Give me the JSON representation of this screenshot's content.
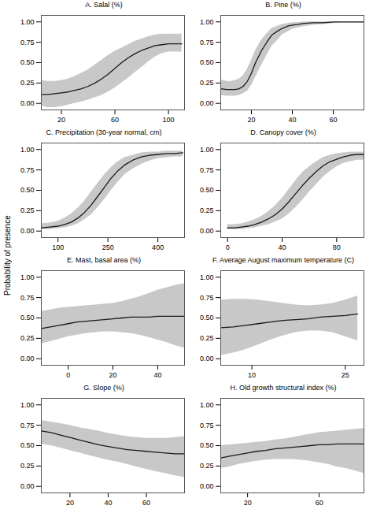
{
  "chart_data": [
    {
      "type": "line",
      "title": "A. Salal (%)",
      "ylabel": "Probability of presence",
      "x": [
        5,
        10,
        15,
        20,
        25,
        30,
        35,
        40,
        45,
        50,
        55,
        60,
        65,
        70,
        75,
        80,
        85,
        90,
        95,
        100,
        105,
        110
      ],
      "xlim": [
        5,
        112
      ],
      "xticks": [
        20,
        60,
        100
      ],
      "ylim": [
        -0.08,
        1.08
      ],
      "yticks": [
        {
          "value": 0.0,
          "label": "0.00"
        },
        {
          "value": 0.25,
          "label": "0.25"
        },
        {
          "value": 0.5,
          "label": "0.50"
        },
        {
          "value": 0.75,
          "label": "0.75"
        },
        {
          "value": 1.0,
          "label": "1.00"
        }
      ],
      "series": [
        {
          "type": "area",
          "color": "#c8c8c8",
          "lower": [
            -0.03,
            -0.05,
            -0.05,
            -0.04,
            -0.02,
            0.0,
            0.02,
            0.04,
            0.07,
            0.1,
            0.14,
            0.19,
            0.25,
            0.31,
            0.38,
            0.44,
            0.51,
            0.57,
            0.61,
            0.63,
            0.63,
            0.63
          ],
          "upper": [
            0.28,
            0.27,
            0.27,
            0.28,
            0.3,
            0.33,
            0.37,
            0.41,
            0.47,
            0.53,
            0.59,
            0.64,
            0.68,
            0.72,
            0.76,
            0.79,
            0.82,
            0.84,
            0.85,
            0.85,
            0.85,
            0.85
          ]
        },
        {
          "type": "line",
          "color": "#1a1a1a",
          "values": [
            0.11,
            0.11,
            0.12,
            0.13,
            0.14,
            0.16,
            0.18,
            0.21,
            0.25,
            0.3,
            0.36,
            0.43,
            0.5,
            0.56,
            0.61,
            0.65,
            0.68,
            0.71,
            0.72,
            0.73,
            0.73,
            0.73
          ]
        }
      ]
    },
    {
      "type": "line",
      "title": "B. Pine (%)",
      "ylabel": "Probability of presence",
      "x": [
        5,
        8,
        10,
        12,
        14,
        16,
        18,
        20,
        22,
        25,
        28,
        30,
        33,
        35,
        38,
        40,
        43,
        45,
        50,
        55,
        60,
        65,
        70,
        75
      ],
      "xlim": [
        5,
        75
      ],
      "xticks": [
        20,
        40,
        60
      ],
      "ylim": [
        -0.08,
        1.08
      ],
      "yticks": [
        {
          "value": 0.0,
          "label": "0.00"
        },
        {
          "value": 0.25,
          "label": "0.25"
        },
        {
          "value": 0.5,
          "label": "0.50"
        },
        {
          "value": 0.75,
          "label": "0.75"
        },
        {
          "value": 1.0,
          "label": "1.00"
        }
      ],
      "series": [
        {
          "type": "area",
          "color": "#c8c8c8",
          "lower": [
            0.1,
            0.09,
            0.09,
            0.09,
            0.1,
            0.12,
            0.15,
            0.22,
            0.32,
            0.47,
            0.61,
            0.7,
            0.78,
            0.84,
            0.88,
            0.91,
            0.93,
            0.94,
            0.96,
            0.97,
            0.98,
            0.99,
            0.99,
            0.99
          ],
          "upper": [
            0.29,
            0.27,
            0.27,
            0.28,
            0.3,
            0.34,
            0.42,
            0.53,
            0.65,
            0.78,
            0.87,
            0.92,
            0.95,
            0.97,
            0.98,
            0.99,
            0.99,
            1.0,
            1.0,
            1.0,
            1.0,
            1.0,
            1.0,
            1.0
          ]
        },
        {
          "type": "line",
          "color": "#1a1a1a",
          "values": [
            0.18,
            0.17,
            0.17,
            0.17,
            0.18,
            0.21,
            0.27,
            0.37,
            0.5,
            0.65,
            0.77,
            0.84,
            0.89,
            0.92,
            0.95,
            0.96,
            0.97,
            0.98,
            0.99,
            0.99,
            1.0,
            1.0,
            1.0,
            1.0
          ]
        }
      ]
    },
    {
      "type": "line",
      "title": "C. Precipitation (30-year normal, cm)",
      "ylabel": "Probability of presence",
      "x": [
        50,
        75,
        100,
        120,
        140,
        160,
        180,
        200,
        220,
        240,
        260,
        280,
        300,
        325,
        350,
        375,
        400,
        425,
        450,
        475
      ],
      "xlim": [
        50,
        480
      ],
      "xticks": [
        100,
        250,
        400
      ],
      "ylim": [
        -0.08,
        1.08
      ],
      "yticks": [
        {
          "value": 0.0,
          "label": "0.00"
        },
        {
          "value": 0.25,
          "label": "0.25"
        },
        {
          "value": 0.5,
          "label": "0.50"
        },
        {
          "value": 0.75,
          "label": "0.75"
        },
        {
          "value": 1.0,
          "label": "1.00"
        }
      ],
      "series": [
        {
          "type": "area",
          "color": "#c8c8c8",
          "lower": [
            0.02,
            0.02,
            0.03,
            0.04,
            0.06,
            0.09,
            0.14,
            0.2,
            0.29,
            0.39,
            0.5,
            0.6,
            0.69,
            0.76,
            0.82,
            0.86,
            0.89,
            0.9,
            0.91,
            0.91
          ],
          "upper": [
            0.09,
            0.1,
            0.12,
            0.16,
            0.21,
            0.28,
            0.37,
            0.48,
            0.59,
            0.69,
            0.78,
            0.85,
            0.9,
            0.93,
            0.96,
            0.97,
            0.97,
            0.98,
            0.98,
            0.98
          ]
        },
        {
          "type": "line",
          "color": "#1a1a1a",
          "values": [
            0.04,
            0.05,
            0.06,
            0.08,
            0.11,
            0.16,
            0.23,
            0.32,
            0.43,
            0.54,
            0.65,
            0.74,
            0.81,
            0.87,
            0.91,
            0.93,
            0.94,
            0.95,
            0.95,
            0.96
          ]
        }
      ]
    },
    {
      "type": "line",
      "title": "D. Canopy cover (%)",
      "ylabel": "Probability of presence",
      "x": [
        0,
        5,
        10,
        15,
        20,
        25,
        30,
        35,
        40,
        45,
        50,
        55,
        60,
        65,
        70,
        75,
        80,
        85,
        90,
        95,
        100
      ],
      "xlim": [
        -5,
        100
      ],
      "xticks": [
        0,
        40,
        80
      ],
      "ylim": [
        -0.08,
        1.08
      ],
      "yticks": [
        {
          "value": 0.0,
          "label": "0.00"
        },
        {
          "value": 0.25,
          "label": "0.25"
        },
        {
          "value": 0.5,
          "label": "0.50"
        },
        {
          "value": 0.75,
          "label": "0.75"
        },
        {
          "value": 1.0,
          "label": "1.00"
        }
      ],
      "series": [
        {
          "type": "area",
          "color": "#c8c8c8",
          "lower": [
            0.02,
            0.02,
            0.02,
            0.03,
            0.04,
            0.06,
            0.08,
            0.11,
            0.15,
            0.21,
            0.29,
            0.38,
            0.48,
            0.57,
            0.66,
            0.73,
            0.79,
            0.83,
            0.85,
            0.87,
            0.87
          ],
          "upper": [
            0.08,
            0.08,
            0.09,
            0.11,
            0.14,
            0.18,
            0.24,
            0.31,
            0.4,
            0.51,
            0.62,
            0.72,
            0.79,
            0.85,
            0.9,
            0.93,
            0.95,
            0.96,
            0.97,
            0.97,
            0.97
          ]
        },
        {
          "type": "line",
          "color": "#1a1a1a",
          "values": [
            0.04,
            0.04,
            0.05,
            0.06,
            0.08,
            0.11,
            0.15,
            0.2,
            0.27,
            0.36,
            0.46,
            0.56,
            0.65,
            0.73,
            0.8,
            0.85,
            0.88,
            0.91,
            0.93,
            0.94,
            0.94
          ]
        }
      ]
    },
    {
      "type": "line",
      "title": "E. Mast, basal area (%)",
      "ylabel": "Probability of presence",
      "x": [
        -12,
        -8,
        -4,
        0,
        4,
        8,
        12,
        16,
        20,
        24,
        28,
        32,
        36,
        40,
        44,
        48,
        52
      ],
      "xlim": [
        -12,
        52
      ],
      "xticks": [
        0,
        20,
        40
      ],
      "ylim": [
        -0.08,
        1.08
      ],
      "yticks": [
        {
          "value": 0.0,
          "label": "0.00"
        },
        {
          "value": 0.25,
          "label": "0.25"
        },
        {
          "value": 0.5,
          "label": "0.50"
        },
        {
          "value": 0.75,
          "label": "0.75"
        },
        {
          "value": 1.0,
          "label": "1.00"
        }
      ],
      "series": [
        {
          "type": "area",
          "color": "#c8c8c8",
          "lower": [
            0.18,
            0.21,
            0.24,
            0.27,
            0.29,
            0.31,
            0.32,
            0.33,
            0.33,
            0.32,
            0.31,
            0.29,
            0.26,
            0.23,
            0.2,
            0.16,
            0.13
          ],
          "upper": [
            0.58,
            0.6,
            0.62,
            0.63,
            0.64,
            0.65,
            0.66,
            0.67,
            0.68,
            0.7,
            0.73,
            0.76,
            0.8,
            0.84,
            0.87,
            0.9,
            0.92
          ]
        },
        {
          "type": "line",
          "color": "#1a1a1a",
          "values": [
            0.37,
            0.39,
            0.41,
            0.43,
            0.45,
            0.46,
            0.47,
            0.48,
            0.49,
            0.5,
            0.51,
            0.51,
            0.51,
            0.52,
            0.52,
            0.52,
            0.52
          ]
        }
      ]
    },
    {
      "type": "line",
      "title": "F. Average August maximum temperature (C)",
      "ylabel": "Probability of presence",
      "x": [
        5,
        7,
        9,
        11,
        13,
        15,
        17,
        19,
        21,
        23,
        25,
        27
      ],
      "xlim": [
        5,
        28
      ],
      "xticks": [
        10,
        25
      ],
      "ylim": [
        -0.08,
        1.08
      ],
      "yticks": [
        {
          "value": 0.0,
          "label": "0.00"
        },
        {
          "value": 0.25,
          "label": "0.25"
        },
        {
          "value": 0.5,
          "label": "0.50"
        },
        {
          "value": 0.75,
          "label": "0.75"
        },
        {
          "value": 1.0,
          "label": "1.00"
        }
      ],
      "series": [
        {
          "type": "area",
          "color": "#c8c8c8",
          "lower": [
            0.04,
            0.07,
            0.11,
            0.17,
            0.23,
            0.28,
            0.32,
            0.34,
            0.34,
            0.32,
            0.27,
            0.22
          ],
          "upper": [
            0.72,
            0.73,
            0.73,
            0.72,
            0.7,
            0.68,
            0.66,
            0.65,
            0.66,
            0.68,
            0.72,
            0.77
          ]
        },
        {
          "type": "line",
          "color": "#1a1a1a",
          "values": [
            0.38,
            0.39,
            0.41,
            0.43,
            0.45,
            0.47,
            0.48,
            0.49,
            0.51,
            0.52,
            0.53,
            0.55
          ]
        }
      ]
    },
    {
      "type": "line",
      "title": "G. Slope (%)",
      "ylabel": "Probability of presence",
      "x": [
        5,
        10,
        15,
        20,
        25,
        30,
        35,
        40,
        45,
        50,
        55,
        60,
        65,
        70,
        75,
        80
      ],
      "xlim": [
        5,
        80
      ],
      "xticks": [
        20,
        40,
        60
      ],
      "ylim": [
        -0.08,
        1.08
      ],
      "yticks": [
        {
          "value": 0.0,
          "label": "0.00"
        },
        {
          "value": 0.25,
          "label": "0.25"
        },
        {
          "value": 0.5,
          "label": "0.50"
        },
        {
          "value": 0.75,
          "label": "0.75"
        },
        {
          "value": 1.0,
          "label": "1.00"
        }
      ],
      "series": [
        {
          "type": "area",
          "color": "#c8c8c8",
          "lower": [
            0.52,
            0.5,
            0.47,
            0.44,
            0.41,
            0.38,
            0.35,
            0.32,
            0.3,
            0.27,
            0.24,
            0.21,
            0.18,
            0.16,
            0.13,
            0.11
          ],
          "upper": [
            0.81,
            0.79,
            0.77,
            0.75,
            0.72,
            0.7,
            0.68,
            0.65,
            0.63,
            0.61,
            0.6,
            0.59,
            0.59,
            0.59,
            0.6,
            0.61
          ]
        },
        {
          "type": "line",
          "color": "#1a1a1a",
          "values": [
            0.68,
            0.66,
            0.63,
            0.6,
            0.57,
            0.54,
            0.51,
            0.49,
            0.47,
            0.45,
            0.44,
            0.43,
            0.42,
            0.41,
            0.4,
            0.4
          ]
        }
      ]
    },
    {
      "type": "line",
      "title": "H. Old growth structural index (%)",
      "ylabel": "Probability of presence",
      "x": [
        5,
        10,
        15,
        20,
        25,
        30,
        35,
        40,
        45,
        50,
        55,
        60,
        65,
        70,
        75,
        80,
        85
      ],
      "xlim": [
        5,
        85
      ],
      "xticks": [
        20,
        60
      ],
      "ylim": [
        -0.08,
        1.08
      ],
      "yticks": [
        {
          "value": 0.0,
          "label": "0.00"
        },
        {
          "value": 0.25,
          "label": "0.25"
        },
        {
          "value": 0.5,
          "label": "0.50"
        },
        {
          "value": 0.75,
          "label": "0.75"
        },
        {
          "value": 1.0,
          "label": "1.00"
        }
      ],
      "series": [
        {
          "type": "area",
          "color": "#c8c8c8",
          "lower": [
            0.22,
            0.24,
            0.27,
            0.29,
            0.31,
            0.32,
            0.33,
            0.33,
            0.33,
            0.32,
            0.31,
            0.29,
            0.27,
            0.24,
            0.22,
            0.19,
            0.16
          ],
          "upper": [
            0.5,
            0.51,
            0.52,
            0.53,
            0.54,
            0.55,
            0.57,
            0.58,
            0.6,
            0.62,
            0.64,
            0.66,
            0.67,
            0.68,
            0.69,
            0.7,
            0.71
          ]
        },
        {
          "type": "line",
          "color": "#1a1a1a",
          "values": [
            0.35,
            0.37,
            0.39,
            0.41,
            0.43,
            0.44,
            0.46,
            0.47,
            0.48,
            0.49,
            0.5,
            0.51,
            0.51,
            0.52,
            0.52,
            0.52,
            0.52
          ]
        }
      ]
    }
  ]
}
